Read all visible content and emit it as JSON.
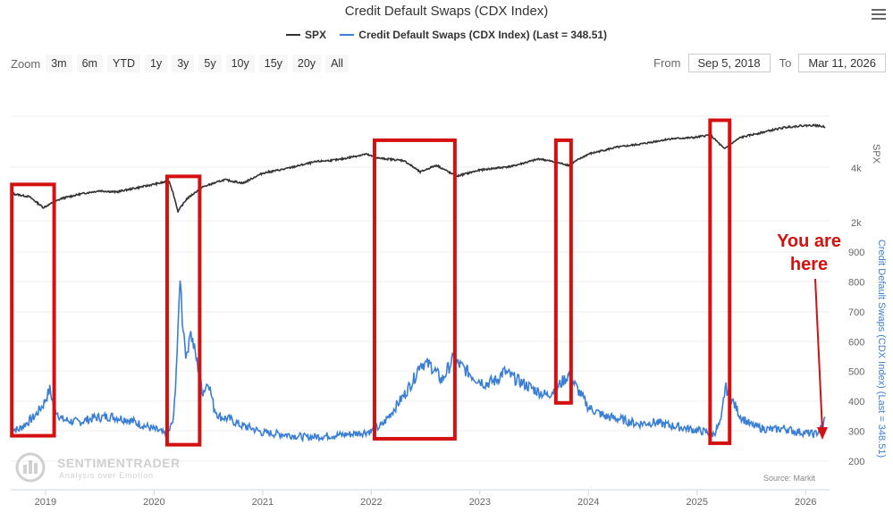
{
  "chart_data": {
    "type": "line",
    "title": "Credit Default Swaps (CDX Index)",
    "series": [
      {
        "name": "SPX",
        "axis": "left-log-upper",
        "color": "#333333",
        "points": [
          [
            2018.68,
            2900
          ],
          [
            2018.85,
            2780
          ],
          [
            2018.98,
            2420
          ],
          [
            2019.15,
            2720
          ],
          [
            2019.35,
            2900
          ],
          [
            2019.5,
            3000
          ],
          [
            2019.65,
            2950
          ],
          [
            2019.85,
            3120
          ],
          [
            2020.1,
            3350
          ],
          [
            2020.14,
            3380
          ],
          [
            2020.22,
            2300
          ],
          [
            2020.3,
            2700
          ],
          [
            2020.45,
            3150
          ],
          [
            2020.65,
            3450
          ],
          [
            2020.82,
            3300
          ],
          [
            2021.0,
            3750
          ],
          [
            2021.2,
            3950
          ],
          [
            2021.5,
            4350
          ],
          [
            2021.7,
            4450
          ],
          [
            2021.95,
            4780
          ],
          [
            2022.05,
            4550
          ],
          [
            2022.3,
            4400
          ],
          [
            2022.45,
            3800
          ],
          [
            2022.6,
            4150
          ],
          [
            2022.78,
            3600
          ],
          [
            2023.0,
            3900
          ],
          [
            2023.3,
            4100
          ],
          [
            2023.55,
            4500
          ],
          [
            2023.82,
            4150
          ],
          [
            2024.0,
            4780
          ],
          [
            2024.25,
            5200
          ],
          [
            2024.5,
            5450
          ],
          [
            2024.75,
            5800
          ],
          [
            2024.98,
            5900
          ],
          [
            2025.12,
            6100
          ],
          [
            2025.25,
            5100
          ],
          [
            2025.4,
            5900
          ],
          [
            2025.6,
            6300
          ],
          [
            2025.8,
            6700
          ],
          [
            2025.95,
            6850
          ],
          [
            2026.08,
            6900
          ],
          [
            2026.18,
            6750
          ]
        ]
      },
      {
        "name": "Credit Default Swaps (CDX Index) (Last = 348.51)",
        "axis": "right-lower",
        "color": "#3a7fd5",
        "points": [
          [
            2018.68,
            310
          ],
          [
            2018.75,
            305
          ],
          [
            2018.9,
            350
          ],
          [
            2018.98,
            390
          ],
          [
            2019.04,
            440
          ],
          [
            2019.08,
            380
          ],
          [
            2019.15,
            340
          ],
          [
            2019.3,
            330
          ],
          [
            2019.45,
            345
          ],
          [
            2019.6,
            350
          ],
          [
            2019.75,
            340
          ],
          [
            2019.9,
            320
          ],
          [
            2020.05,
            300
          ],
          [
            2020.12,
            285
          ],
          [
            2020.18,
            340
          ],
          [
            2020.22,
            620
          ],
          [
            2020.24,
            830
          ],
          [
            2020.26,
            680
          ],
          [
            2020.3,
            540
          ],
          [
            2020.33,
            640
          ],
          [
            2020.38,
            560
          ],
          [
            2020.45,
            430
          ],
          [
            2020.5,
            470
          ],
          [
            2020.55,
            380
          ],
          [
            2020.6,
            350
          ],
          [
            2020.7,
            340
          ],
          [
            2020.8,
            320
          ],
          [
            2020.9,
            310
          ],
          [
            2021.0,
            295
          ],
          [
            2021.2,
            290
          ],
          [
            2021.4,
            280
          ],
          [
            2021.6,
            285
          ],
          [
            2021.8,
            290
          ],
          [
            2022.0,
            300
          ],
          [
            2022.1,
            320
          ],
          [
            2022.2,
            370
          ],
          [
            2022.3,
            420
          ],
          [
            2022.4,
            480
          ],
          [
            2022.45,
            530
          ],
          [
            2022.55,
            520
          ],
          [
            2022.65,
            470
          ],
          [
            2022.75,
            540
          ],
          [
            2022.82,
            520
          ],
          [
            2022.95,
            480
          ],
          [
            2023.05,
            460
          ],
          [
            2023.15,
            470
          ],
          [
            2023.22,
            500
          ],
          [
            2023.35,
            470
          ],
          [
            2023.5,
            440
          ],
          [
            2023.62,
            420
          ],
          [
            2023.72,
            450
          ],
          [
            2023.82,
            490
          ],
          [
            2023.9,
            440
          ],
          [
            2024.0,
            380
          ],
          [
            2024.15,
            350
          ],
          [
            2024.3,
            340
          ],
          [
            2024.45,
            325
          ],
          [
            2024.6,
            330
          ],
          [
            2024.75,
            320
          ],
          [
            2024.9,
            310
          ],
          [
            2025.05,
            300
          ],
          [
            2025.15,
            290
          ],
          [
            2025.22,
            330
          ],
          [
            2025.26,
            450
          ],
          [
            2025.3,
            420
          ],
          [
            2025.4,
            350
          ],
          [
            2025.5,
            320
          ],
          [
            2025.6,
            310
          ],
          [
            2025.7,
            305
          ],
          [
            2025.8,
            310
          ],
          [
            2025.9,
            300
          ],
          [
            2026.0,
            295
          ],
          [
            2026.08,
            290
          ],
          [
            2026.12,
            300
          ],
          [
            2026.16,
            320
          ],
          [
            2026.18,
            348.51
          ]
        ]
      }
    ],
    "xlim": [
      2018.68,
      2026.22
    ],
    "x_ticks": [
      "2019",
      "2020",
      "2021",
      "2022",
      "2023",
      "2024",
      "2025",
      "2026"
    ],
    "upper_axis": {
      "label": "SPX",
      "scale": "log",
      "range": [
        1500,
        10000
      ],
      "ticks": [
        {
          "v": 4000,
          "label": "4k"
        },
        {
          "v": 2000,
          "label": "2k"
        }
      ]
    },
    "lower_axis": {
      "label": "Credit Default Swaps (CDX Index) (Last = 348.51)",
      "range": [
        200,
        900
      ],
      "ticks": [
        900,
        800,
        700,
        600,
        500,
        400,
        300,
        200
      ]
    },
    "highlight_boxes": [
      {
        "x0": 2018.69,
        "x1": 2019.08,
        "y0": 285,
        "y1": 3250
      },
      {
        "x0": 2020.12,
        "x1": 2020.42,
        "y0": 255,
        "y1": 3600
      },
      {
        "x0": 2022.03,
        "x1": 2022.77,
        "y0": 275,
        "y1": 5700
      },
      {
        "x0": 2023.7,
        "x1": 2023.84,
        "y0": 395,
        "y1": 5700
      },
      {
        "x0": 2025.12,
        "x1": 2025.3,
        "y0": 260,
        "y1": 7350
      }
    ],
    "annotation": {
      "text_line1": "You are",
      "text_line2": "here",
      "color": "#d41010"
    },
    "source": "Source: Markit"
  },
  "toolbar": {
    "zoom_label": "Zoom",
    "zoom_buttons": [
      "3m",
      "6m",
      "YTD",
      "1y",
      "3y",
      "5y",
      "10y",
      "15y",
      "20y",
      "All"
    ],
    "from_label": "From",
    "from_value": "Sep 5, 2018",
    "to_label": "To",
    "to_value": "Mar 11, 2026"
  },
  "legend": {
    "spx": "SPX",
    "cdx": "Credit Default Swaps (CDX Index) (Last = 348.51)"
  },
  "watermark": {
    "brand": "SENTIMENTRADER",
    "tagline": "Analysis over Emotion"
  },
  "colors": {
    "spx": "#333333",
    "cdx": "#3a7fd5",
    "highlight": "#d41010"
  }
}
